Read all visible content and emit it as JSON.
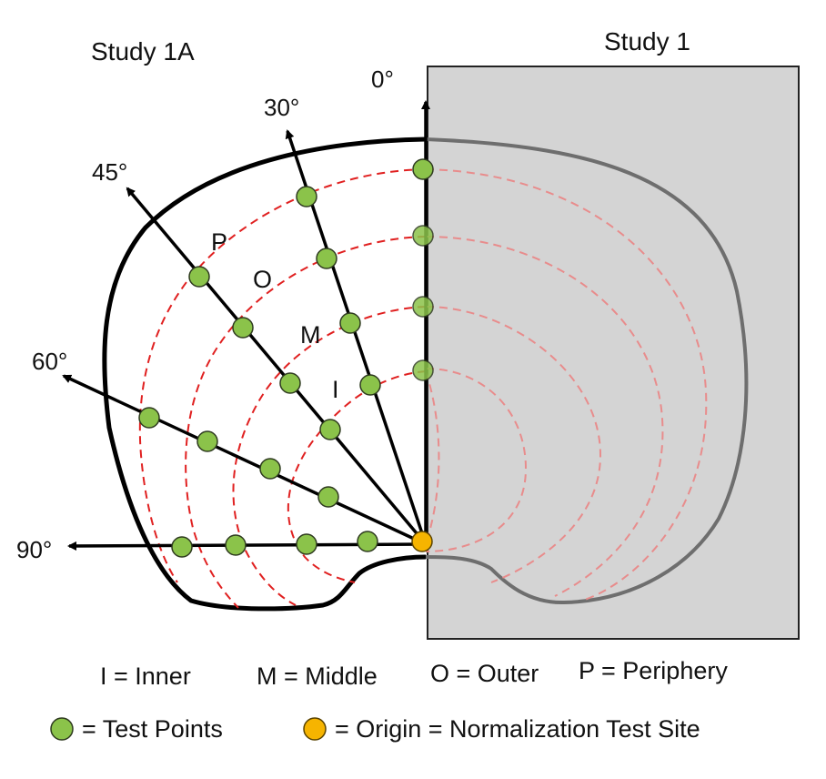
{
  "titles": {
    "left": "Study 1A",
    "right": "Study 1"
  },
  "angles": [
    "0°",
    "30°",
    "45°",
    "60°",
    "90°"
  ],
  "zones": {
    "inner": "I",
    "middle": "M",
    "outer": "O",
    "periphery": "P"
  },
  "legend": {
    "inner": "I = Inner",
    "middle": "M = Middle",
    "outer": "O = Outer",
    "periphery": "P = Periphery",
    "test_points": "= Test Points",
    "origin": "= Origin = Normalization Test Site"
  },
  "colors": {
    "test_point": "#8bc34a",
    "origin": "#f6b400",
    "contour": "#e53935",
    "shaded_panel": "#d4d4d4"
  }
}
